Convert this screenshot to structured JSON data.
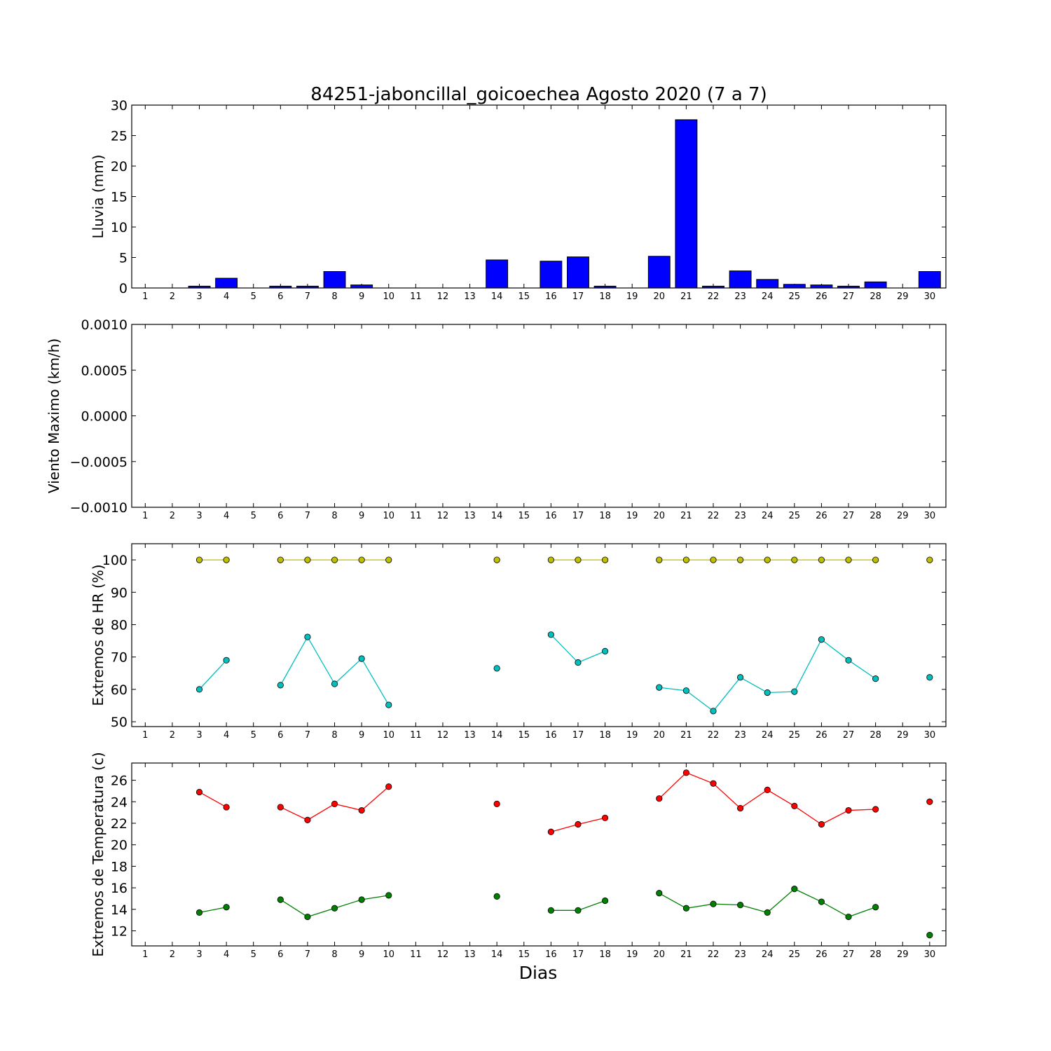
{
  "title": "84251-jaboncillal_goicoechea Agosto 2020  (7 a 7)",
  "xlabel": "Dias",
  "days": [
    "1",
    "2",
    "3",
    "4",
    "5",
    "6",
    "7",
    "8",
    "9",
    "10",
    "11",
    "12",
    "13",
    "14",
    "15",
    "16",
    "17",
    "18",
    "19",
    "20",
    "21",
    "22",
    "23",
    "24",
    "25",
    "26",
    "27",
    "28",
    "29",
    "30"
  ],
  "chart_data": [
    {
      "type": "bar",
      "ylabel": "Lluvia (mm)",
      "ylim": [
        0,
        30
      ],
      "yticks": [
        "0",
        "5",
        "10",
        "15",
        "20",
        "25",
        "30"
      ],
      "categories": [
        "1",
        "2",
        "3",
        "4",
        "5",
        "6",
        "7",
        "8",
        "9",
        "10",
        "11",
        "12",
        "13",
        "14",
        "15",
        "16",
        "17",
        "18",
        "19",
        "20",
        "21",
        "22",
        "23",
        "24",
        "25",
        "26",
        "27",
        "28",
        "29",
        "30"
      ],
      "values": [
        0,
        0,
        0.3,
        1.6,
        0,
        0.3,
        0.3,
        2.7,
        0.5,
        0,
        0,
        0,
        0,
        4.6,
        0,
        4.4,
        5.1,
        0.3,
        0,
        5.2,
        27.6,
        0.3,
        2.8,
        1.4,
        0.6,
        0.5,
        0.3,
        1.0,
        0,
        2.7
      ],
      "color": "#0000ff"
    },
    {
      "type": "line",
      "ylabel": "Viento Maximo (km/h)",
      "ylim": [
        -0.001,
        0.001
      ],
      "yticks": [
        "0.0010",
        "0.0005",
        "0.0000",
        "−0.0005",
        "−0.0010"
      ],
      "categories": [
        "1",
        "2",
        "3",
        "4",
        "5",
        "6",
        "7",
        "8",
        "9",
        "10",
        "11",
        "12",
        "13",
        "14",
        "15",
        "16",
        "17",
        "18",
        "19",
        "20",
        "21",
        "22",
        "23",
        "24",
        "25",
        "26",
        "27",
        "28",
        "29",
        "30"
      ],
      "series": []
    },
    {
      "type": "line",
      "ylabel": "Extremos de HR (%)",
      "ylim": [
        48.5,
        105
      ],
      "yticks": [
        "50",
        "60",
        "70",
        "80",
        "90",
        "100"
      ],
      "categories": [
        "1",
        "2",
        "3",
        "4",
        "5",
        "6",
        "7",
        "8",
        "9",
        "10",
        "11",
        "12",
        "13",
        "14",
        "15",
        "16",
        "17",
        "18",
        "19",
        "20",
        "21",
        "22",
        "23",
        "24",
        "25",
        "26",
        "27",
        "28",
        "29",
        "30"
      ],
      "series": [
        {
          "color": "#bfbf00",
          "values": [
            null,
            null,
            100,
            100,
            null,
            100,
            100,
            100,
            100,
            100,
            null,
            null,
            null,
            100,
            null,
            100,
            100,
            100,
            null,
            100,
            100,
            100,
            100,
            100,
            100,
            100,
            100,
            100,
            null,
            100
          ]
        },
        {
          "color": "#00bfbf",
          "values": [
            null,
            null,
            60,
            69,
            null,
            61.3,
            76.2,
            61.7,
            69.5,
            55.2,
            null,
            null,
            null,
            66.5,
            null,
            76.9,
            68.3,
            71.8,
            null,
            60.6,
            59.6,
            53.3,
            63.7,
            59.0,
            59.3,
            75.4,
            69.0,
            63.3,
            null,
            63.7
          ]
        }
      ]
    },
    {
      "type": "line",
      "ylabel": "Extremos de Temperatura (c)",
      "ylim": [
        10.6,
        27.6
      ],
      "yticks": [
        "12",
        "14",
        "16",
        "18",
        "20",
        "22",
        "24",
        "26"
      ],
      "categories": [
        "1",
        "2",
        "3",
        "4",
        "5",
        "6",
        "7",
        "8",
        "9",
        "10",
        "11",
        "12",
        "13",
        "14",
        "15",
        "16",
        "17",
        "18",
        "19",
        "20",
        "21",
        "22",
        "23",
        "24",
        "25",
        "26",
        "27",
        "28",
        "29",
        "30"
      ],
      "series": [
        {
          "color": "#ff0000",
          "values": [
            null,
            null,
            24.9,
            23.5,
            null,
            23.5,
            22.3,
            23.8,
            23.2,
            25.4,
            null,
            null,
            null,
            23.8,
            null,
            21.2,
            21.9,
            22.5,
            null,
            24.3,
            26.7,
            25.7,
            23.4,
            25.1,
            23.6,
            21.9,
            23.2,
            23.3,
            null,
            24.0
          ]
        },
        {
          "color": "#008000",
          "values": [
            null,
            null,
            13.7,
            14.2,
            null,
            14.9,
            13.3,
            14.1,
            14.9,
            15.3,
            null,
            null,
            null,
            15.2,
            null,
            13.9,
            13.9,
            14.8,
            null,
            15.5,
            14.1,
            14.5,
            14.4,
            13.7,
            15.9,
            14.7,
            13.3,
            14.2,
            null,
            11.6
          ]
        }
      ]
    }
  ]
}
